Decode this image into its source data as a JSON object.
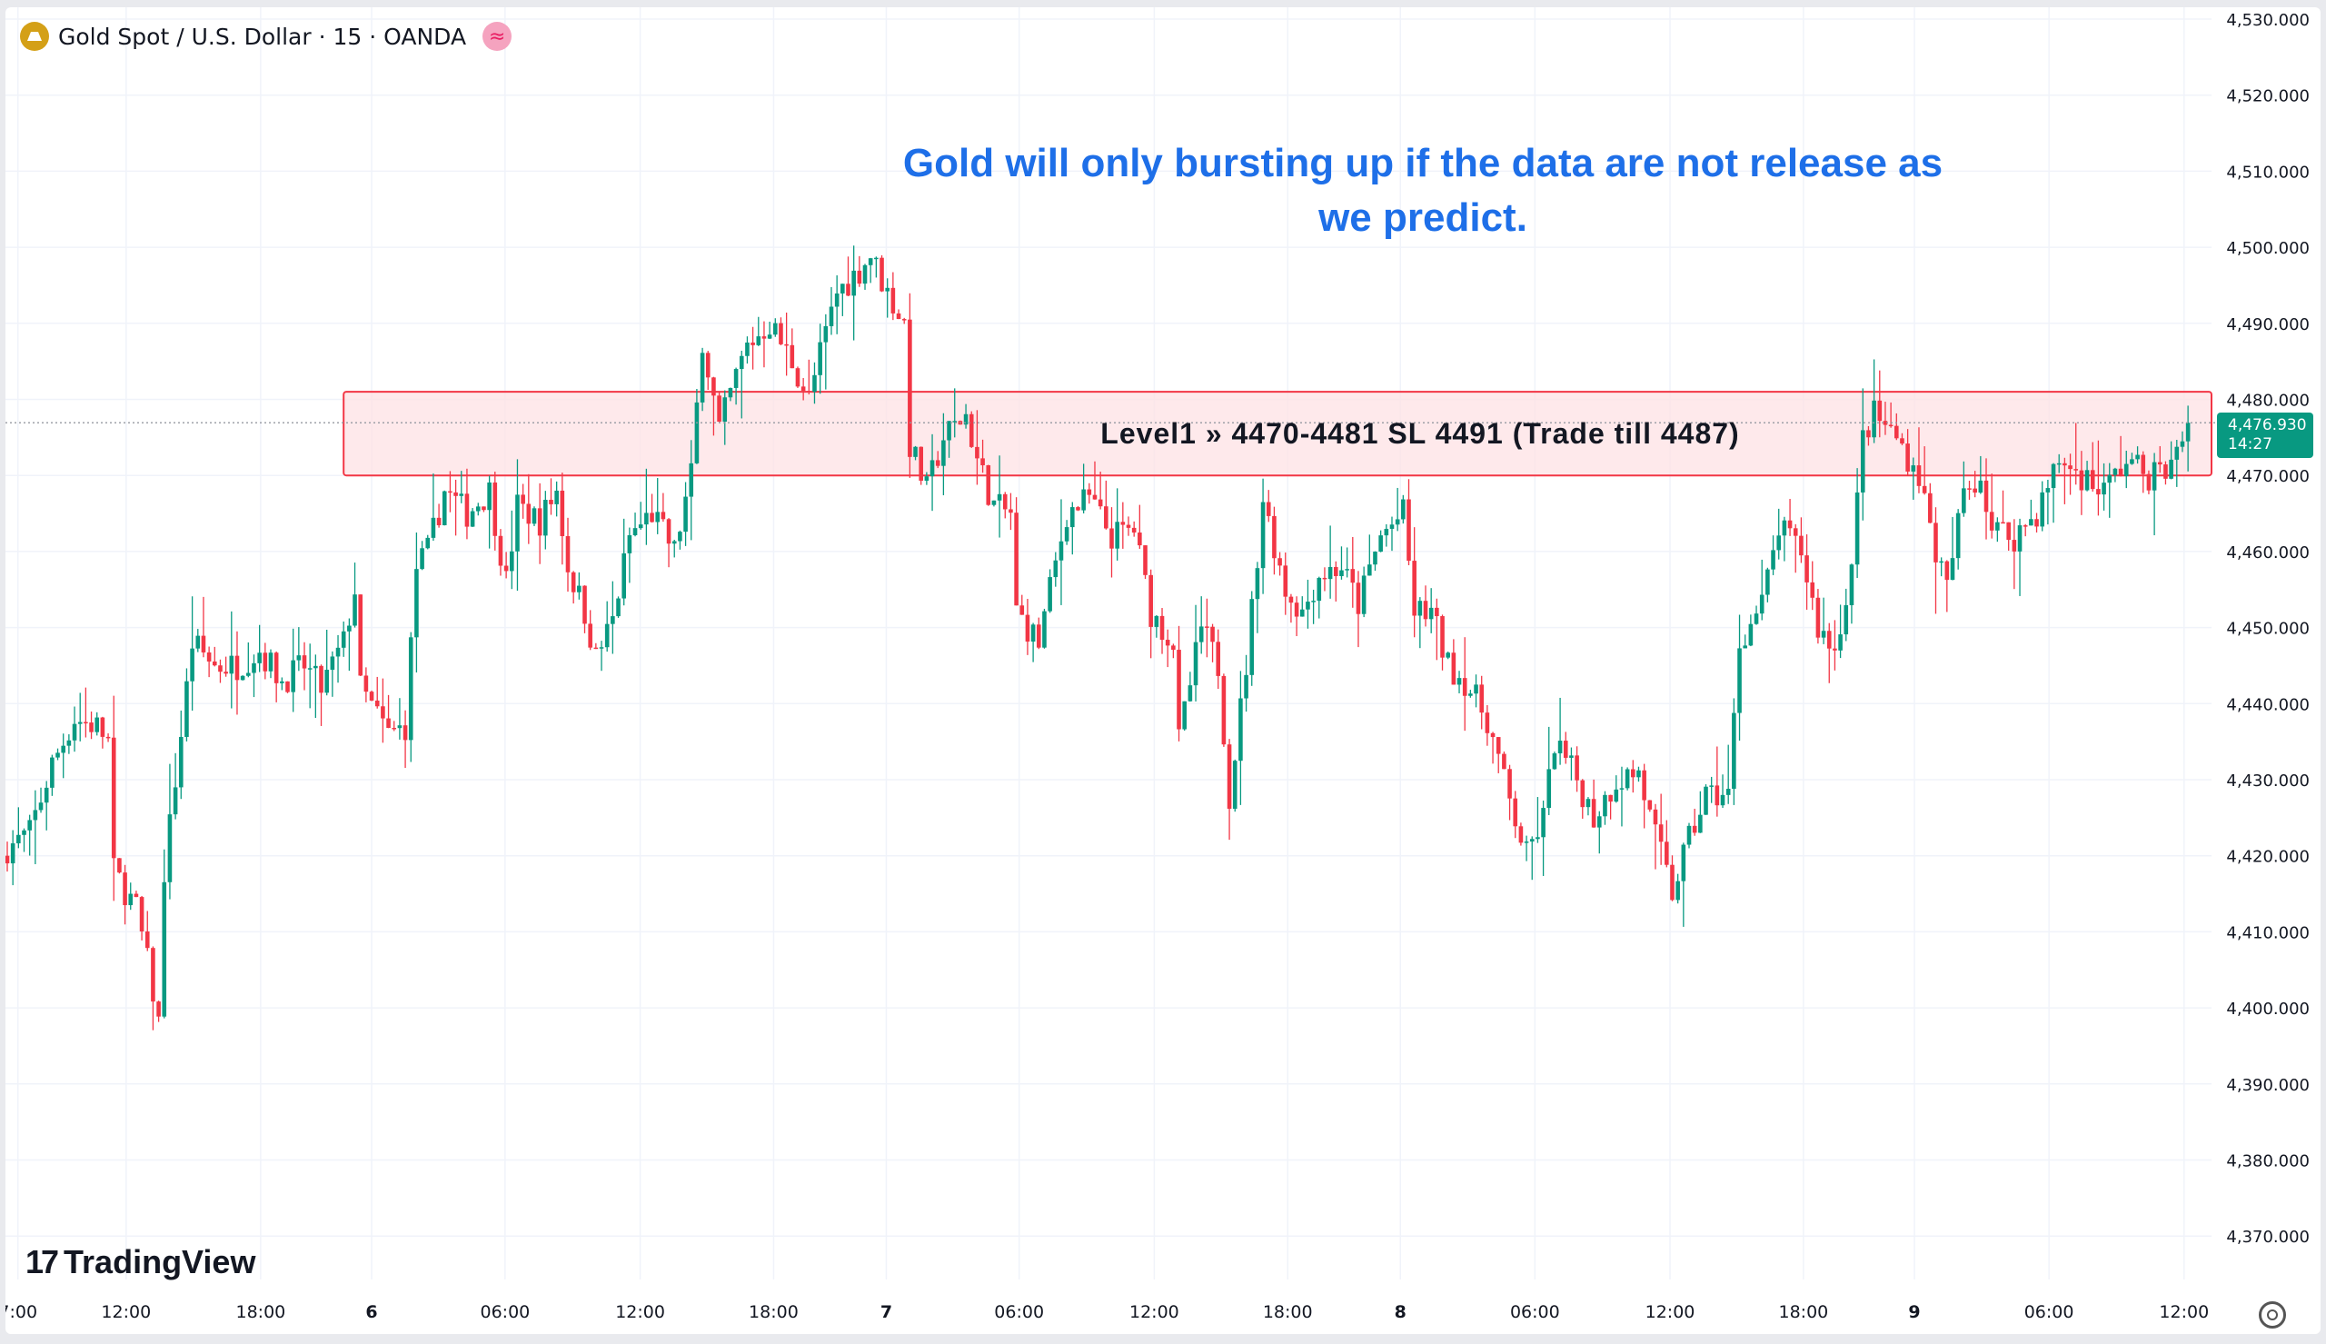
{
  "header": {
    "symbol": "Gold Spot / U.S. Dollar · 15 · OANDA",
    "symbol_icon": "gold-bars-icon",
    "data_icon": "approx-wave-icon",
    "data_icon_glyph": "≈"
  },
  "note": "Gold will only bursting up if the data are not release as we predict.",
  "zone_label": "Level1 » 4470-4481 SL 4491 (Trade till 4487)",
  "current_price": {
    "price": "4,476.930",
    "countdown": "14:27",
    "value": 4476.93
  },
  "logo": "TradingView",
  "colors": {
    "up": "#089981",
    "down": "#f23645",
    "zone_fill": "#fde2e4",
    "zone_border": "#f23645",
    "note": "#1e6fe8"
  },
  "chart_data": {
    "type": "candlestick",
    "title": "Gold Spot / U.S. Dollar · 15 · OANDA",
    "interval_minutes": 15,
    "ylim": [
      4365,
      4532
    ],
    "y_ticks": [
      4370,
      4380,
      4390,
      4400,
      4410,
      4420,
      4430,
      4440,
      4450,
      4460,
      4470,
      4480,
      4490,
      4500,
      4510,
      4520,
      4530
    ],
    "y_tick_labels": [
      "4,370.000",
      "4,380.000",
      "4,390.000",
      "4,400.000",
      "4,410.000",
      "4,420.000",
      "4,430.000",
      "4,440.000",
      "4,450.000",
      "4,460.000",
      "4,470.000",
      "4,480.000",
      "4,490.000",
      "4,500.000",
      "4,510.000",
      "4,520.000",
      "4,530.000"
    ],
    "bar_count": 390,
    "x_ticks": [
      {
        "bar": 1.9,
        "label": "7:00"
      },
      {
        "bar": 21.2,
        "label": "12:00"
      },
      {
        "bar": 45.2,
        "label": "18:00"
      },
      {
        "bar": 65,
        "label": "6",
        "bold": true
      },
      {
        "bar": 88.8,
        "label": "06:00"
      },
      {
        "bar": 112.9,
        "label": "12:00"
      },
      {
        "bar": 136.7,
        "label": "18:00"
      },
      {
        "bar": 156.8,
        "label": "7",
        "bold": true
      },
      {
        "bar": 180.5,
        "label": "06:00"
      },
      {
        "bar": 204.6,
        "label": "12:00"
      },
      {
        "bar": 228.4,
        "label": "18:00"
      },
      {
        "bar": 248.5,
        "label": "8",
        "bold": true
      },
      {
        "bar": 272.5,
        "label": "06:00"
      },
      {
        "bar": 296.6,
        "label": "12:00"
      },
      {
        "bar": 320.4,
        "label": "18:00"
      },
      {
        "bar": 340.2,
        "label": "9",
        "bold": true
      },
      {
        "bar": 364.2,
        "label": "06:00"
      },
      {
        "bar": 388.3,
        "label": "12:00"
      }
    ],
    "zone": {
      "low": 4470,
      "high": 4481,
      "start_bar": 60,
      "end_bar": 393
    },
    "close_path": [
      [
        0,
        4421
      ],
      [
        4,
        4423
      ],
      [
        8,
        4432
      ],
      [
        12,
        4438
      ],
      [
        16,
        4437
      ],
      [
        18,
        4435
      ],
      [
        19,
        4418
      ],
      [
        23,
        4413
      ],
      [
        25,
        4406
      ],
      [
        27,
        4398
      ],
      [
        28,
        4418
      ],
      [
        30,
        4430
      ],
      [
        33,
        4448
      ],
      [
        37,
        4445
      ],
      [
        41,
        4445
      ],
      [
        45,
        4447
      ],
      [
        49,
        4443
      ],
      [
        53,
        4445
      ],
      [
        56,
        4442
      ],
      [
        60,
        4448
      ],
      [
        62,
        4455
      ],
      [
        63,
        4442
      ],
      [
        68,
        4436
      ],
      [
        71,
        4437
      ],
      [
        73,
        4458
      ],
      [
        75,
        4460
      ],
      [
        78,
        4468
      ],
      [
        82,
        4465
      ],
      [
        86,
        4468
      ],
      [
        89,
        4456
      ],
      [
        91,
        4466
      ],
      [
        95,
        4464
      ],
      [
        98,
        4468
      ],
      [
        100,
        4458
      ],
      [
        103,
        4452
      ],
      [
        105,
        4446
      ],
      [
        108,
        4451
      ],
      [
        111,
        4462
      ],
      [
        115,
        4465
      ],
      [
        119,
        4460
      ],
      [
        122,
        4470
      ],
      [
        124,
        4488
      ],
      [
        127,
        4476
      ],
      [
        130,
        4483
      ],
      [
        132,
        4487
      ],
      [
        136,
        4490
      ],
      [
        140,
        4485
      ],
      [
        143,
        4480
      ],
      [
        145,
        4486
      ],
      [
        148,
        4494
      ],
      [
        152,
        4497
      ],
      [
        154,
        4499
      ],
      [
        157,
        4494
      ],
      [
        160,
        4490
      ],
      [
        161,
        4474
      ],
      [
        164,
        4468
      ],
      [
        167,
        4475
      ],
      [
        171,
        4478
      ],
      [
        173,
        4472
      ],
      [
        176,
        4466
      ],
      [
        179,
        4465
      ],
      [
        180,
        4452
      ],
      [
        184,
        4448
      ],
      [
        186,
        4455
      ],
      [
        189,
        4465
      ],
      [
        193,
        4467
      ],
      [
        197,
        4462
      ],
      [
        201,
        4463
      ],
      [
        204,
        4452
      ],
      [
        208,
        4448
      ],
      [
        209,
        4435
      ],
      [
        213,
        4450
      ],
      [
        216,
        4445
      ],
      [
        218,
        4428
      ],
      [
        221,
        4445
      ],
      [
        224,
        4467
      ],
      [
        228,
        4455
      ],
      [
        231,
        4452
      ],
      [
        234,
        4457
      ],
      [
        238,
        4458
      ],
      [
        241,
        4453
      ],
      [
        245,
        4462
      ],
      [
        249,
        4465
      ],
      [
        251,
        4452
      ],
      [
        254,
        4452
      ],
      [
        257,
        4445
      ],
      [
        260,
        4443
      ],
      [
        264,
        4438
      ],
      [
        268,
        4427
      ],
      [
        271,
        4420
      ],
      [
        274,
        4425
      ],
      [
        276,
        4435
      ],
      [
        280,
        4430
      ],
      [
        283,
        4425
      ],
      [
        287,
        4430
      ],
      [
        291,
        4431
      ],
      [
        293,
        4425
      ],
      [
        297,
        4415
      ],
      [
        299,
        4420
      ],
      [
        303,
        4428
      ],
      [
        307,
        4428
      ],
      [
        309,
        4448
      ],
      [
        313,
        4453
      ],
      [
        316,
        4463
      ],
      [
        320,
        4460
      ],
      [
        323,
        4450
      ],
      [
        326,
        4447
      ],
      [
        329,
        4458
      ],
      [
        331,
        4475
      ],
      [
        333,
        4478
      ],
      [
        337,
        4475
      ],
      [
        341,
        4470
      ],
      [
        344,
        4460
      ],
      [
        346,
        4455
      ],
      [
        349,
        4468
      ],
      [
        352,
        4470
      ],
      [
        354,
        4463
      ],
      [
        358,
        4462
      ],
      [
        362,
        4465
      ],
      [
        366,
        4472
      ],
      [
        370,
        4470
      ],
      [
        374,
        4468
      ],
      [
        378,
        4472
      ],
      [
        382,
        4470
      ],
      [
        386,
        4471
      ],
      [
        389,
        4476.93
      ]
    ]
  }
}
